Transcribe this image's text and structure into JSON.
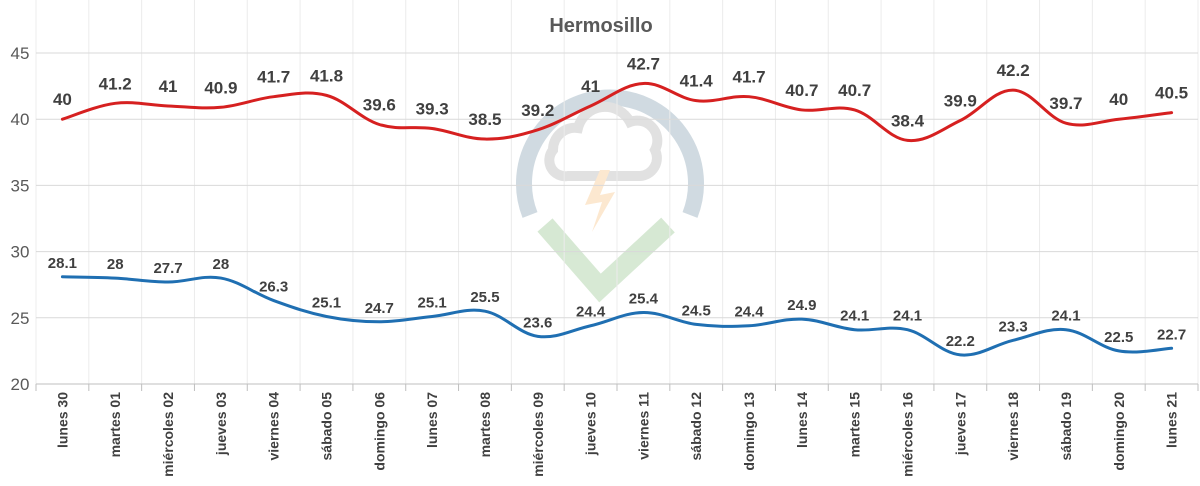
{
  "chart_data": {
    "type": "line",
    "title": "Hermosillo",
    "categories": [
      "lunes 30",
      "martes 01",
      "miércoles 02",
      "jueves 03",
      "viernes 04",
      "sábado 05",
      "domingo 06",
      "lunes 07",
      "martes 08",
      "miércoles 09",
      "jueves 10",
      "viernes 11",
      "sábado 12",
      "domingo 13",
      "lunes 14",
      "martes 15",
      "miércoles 16",
      "jueves 17",
      "viernes 18",
      "sábado 19",
      "domingo 20",
      "lunes 21"
    ],
    "series": [
      {
        "values": [
          40,
          41.2,
          41,
          40.9,
          41.7,
          41.8,
          39.6,
          39.3,
          38.5,
          39.2,
          41,
          42.7,
          41.4,
          41.7,
          40.7,
          40.7,
          38.4,
          39.9,
          42.2,
          39.7,
          40,
          40.5
        ],
        "color": "#d62020"
      },
      {
        "values": [
          28.1,
          28,
          27.7,
          28,
          26.3,
          25.1,
          24.7,
          25.1,
          25.5,
          23.6,
          24.4,
          25.4,
          24.5,
          24.4,
          24.9,
          24.1,
          24.1,
          22.2,
          23.3,
          24.1,
          22.5,
          22.7
        ],
        "color": "#1f6fb2"
      }
    ],
    "ylim": [
      20,
      45
    ],
    "yticks": [
      20,
      25,
      30,
      35,
      40,
      45
    ],
    "grid": true,
    "legend": "none"
  }
}
